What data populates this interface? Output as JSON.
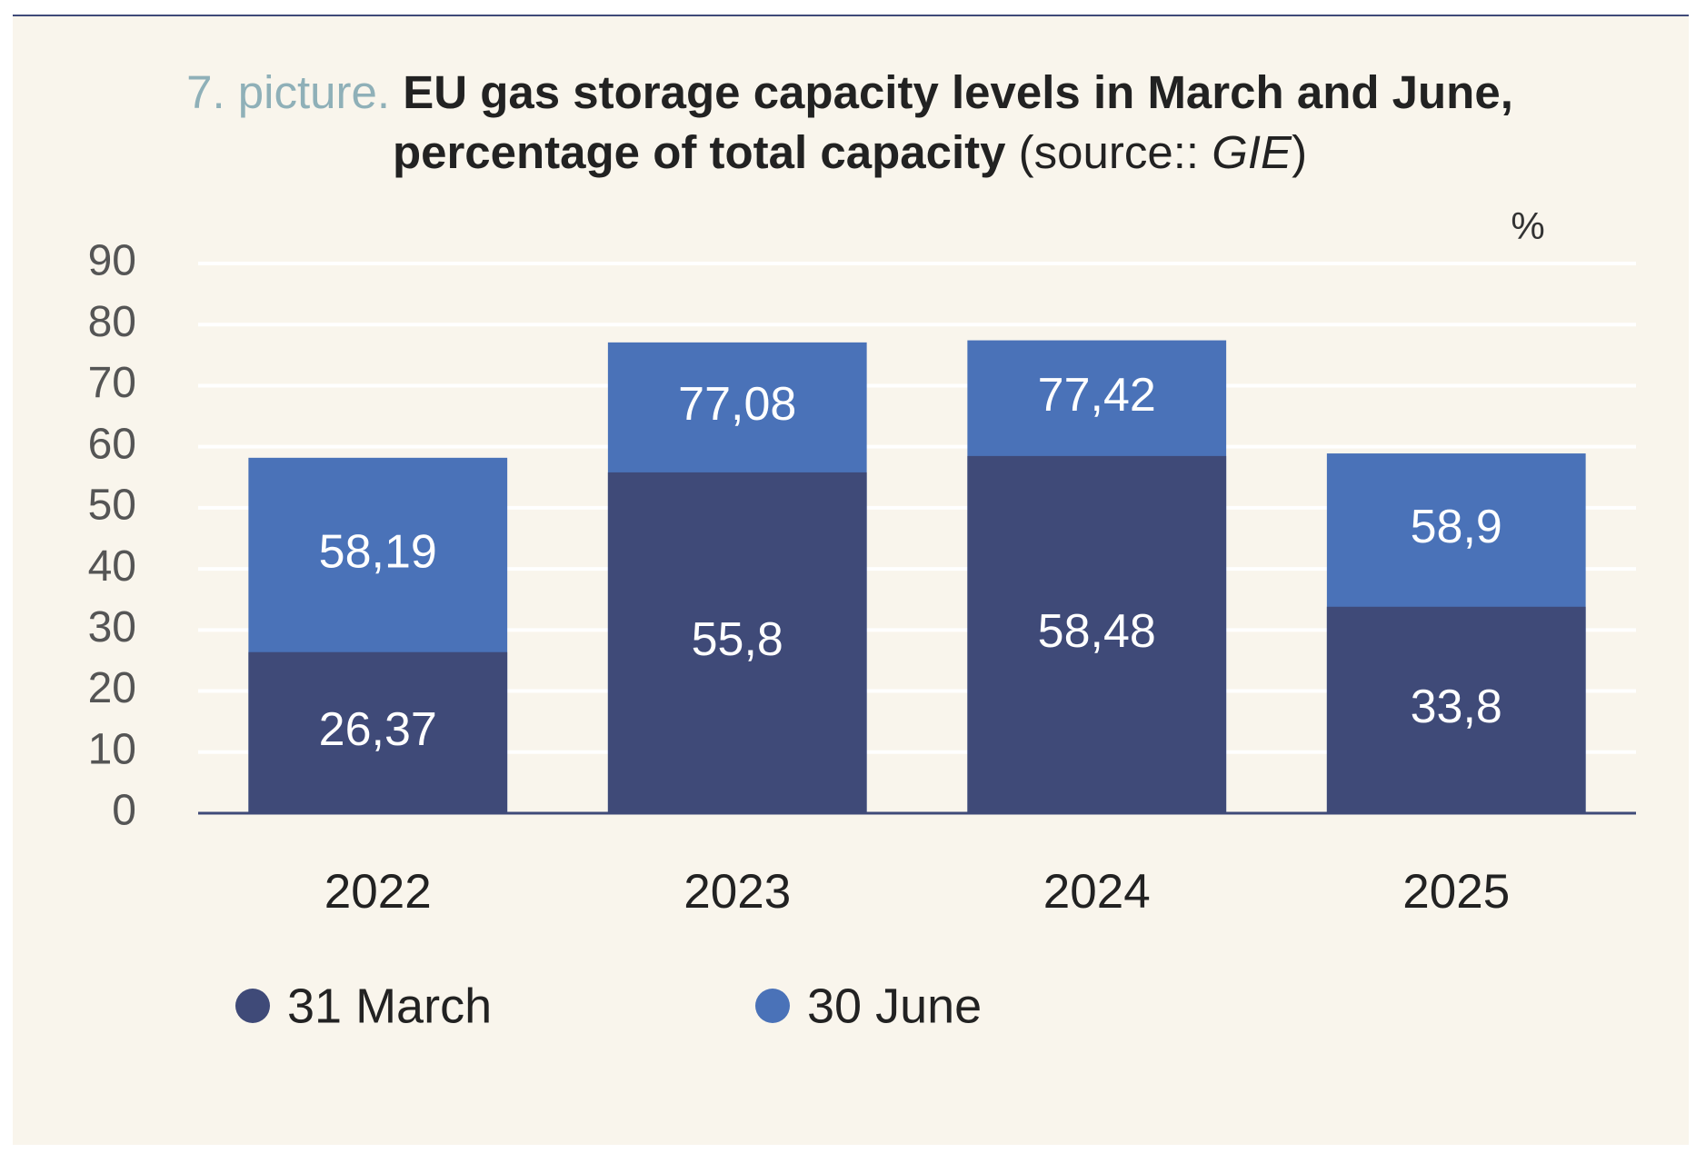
{
  "chart_data": {
    "type": "bar",
    "title_prefix": "7. picture.",
    "title": [
      "EU gas storage capacity levels in March and June,",
      "percentage of total capacity"
    ],
    "source_prefix": "(source::",
    "source": "GIE",
    "source_suffix": ")",
    "y_unit": "%",
    "categories": [
      "2022",
      "2023",
      "2024",
      "2025"
    ],
    "series": [
      {
        "name": "31 March",
        "color": "#3f4a78",
        "values": [
          26.37,
          55.8,
          58.48,
          33.8
        ],
        "value_labels": [
          "26,37",
          "55,8",
          "58,48",
          "33,8"
        ]
      },
      {
        "name": "30 June",
        "color": "#4a72b8",
        "values": [
          58.19,
          77.08,
          77.42,
          58.9
        ],
        "value_labels": [
          "58,19",
          "77,08",
          "77,42",
          "58,9"
        ]
      }
    ],
    "ylim": [
      0,
      90
    ],
    "yticks": [
      0,
      10,
      20,
      30,
      40,
      50,
      60,
      70,
      80,
      90
    ],
    "grid": true,
    "legend": "bottom"
  }
}
